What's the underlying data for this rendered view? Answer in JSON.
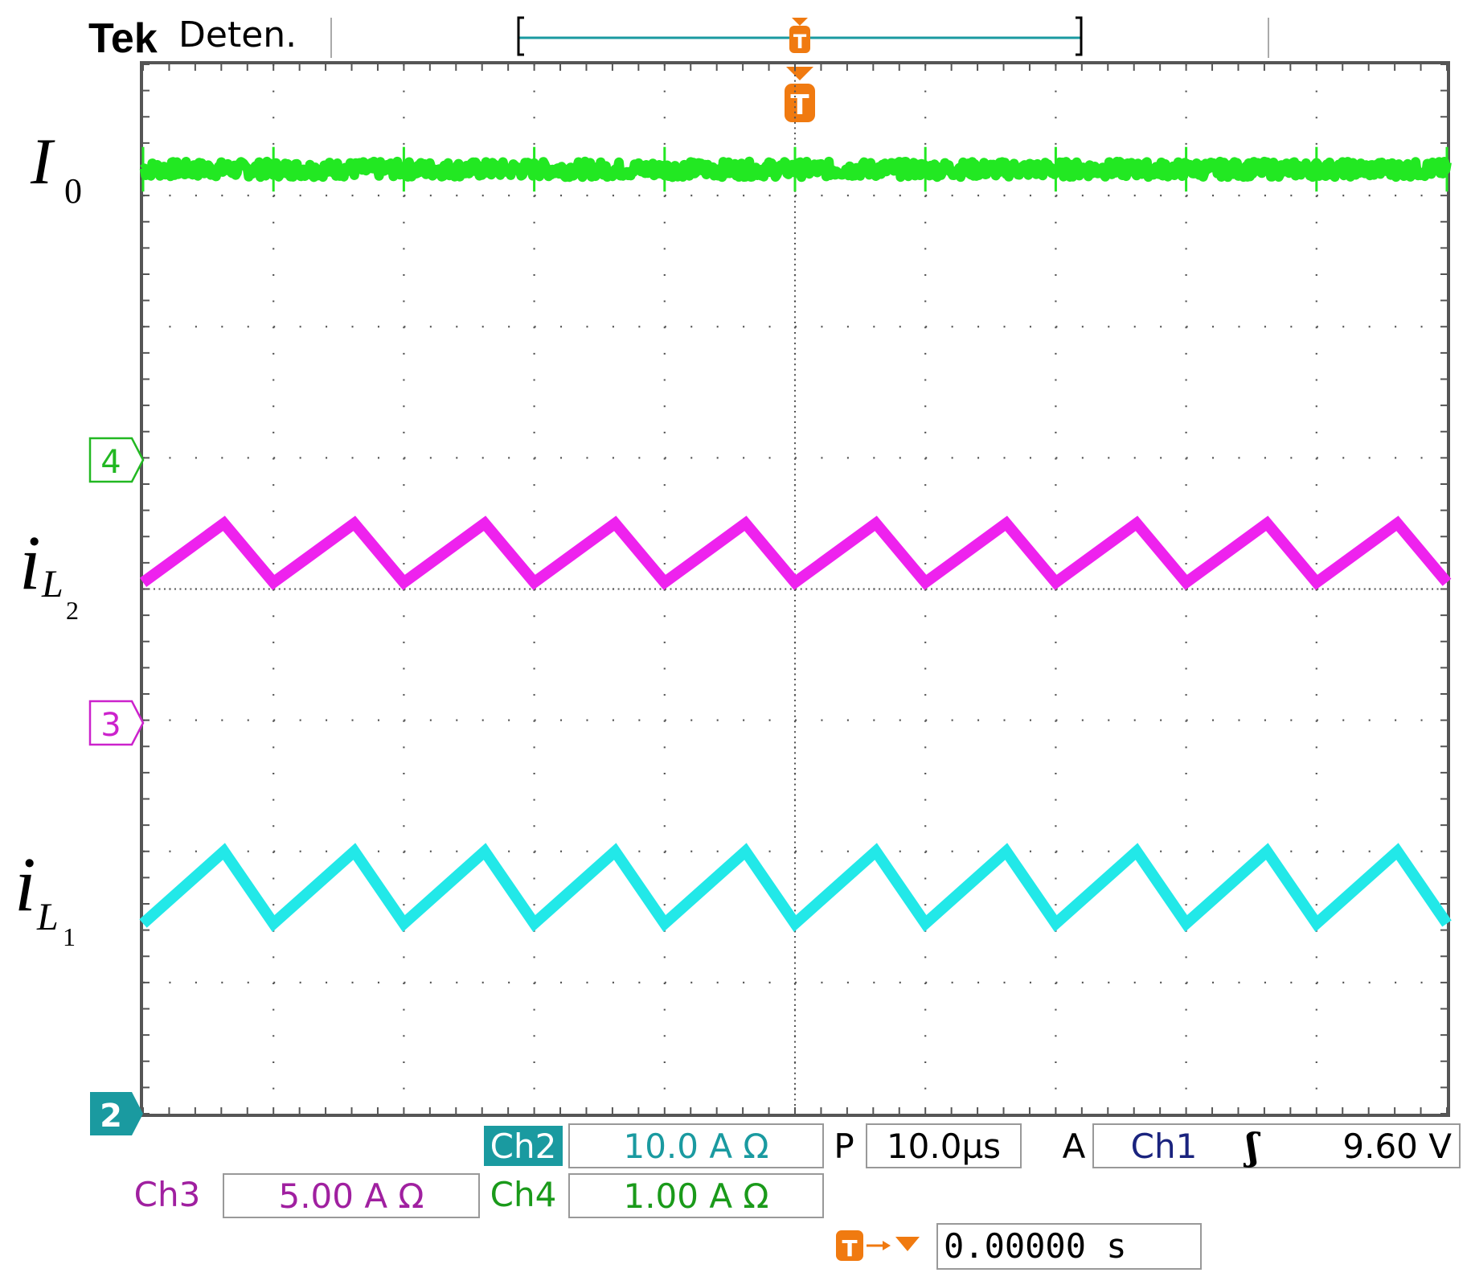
{
  "header": {
    "brand": "Tek",
    "status": "Deten.",
    "trigger_marker": "T"
  },
  "trace_labels": {
    "io_main": "I",
    "io_sub": "0",
    "il2_main": "i",
    "il2_sub": "L",
    "il2_subsub": "2",
    "il1_main": "i",
    "il1_sub": "L",
    "il1_subsub": "1"
  },
  "channel_markers": {
    "ch4": "4",
    "ch3": "3",
    "ch2": "2"
  },
  "readouts": {
    "ch2_name": "Ch2",
    "ch2_scale": "10.0 A Ω",
    "ch3_name": "Ch3",
    "ch3_scale": "5.00 A Ω",
    "ch4_name": "Ch4",
    "ch4_scale": "1.00 A Ω",
    "p_label": "P",
    "timebase": "10.0µs",
    "a_label": "A",
    "trigger_source": "Ch1",
    "trigger_slope": "ʃ",
    "trigger_level": "9.60 V",
    "trigger_pos_label": "T",
    "trigger_offset": "0.00000 s"
  },
  "colors": {
    "ch4": "#22e822",
    "ch3": "#ee22ee",
    "ch2": "#22e8e8",
    "ch2_tag": "#1a9aa0",
    "ch1": "#1a237e",
    "trigger": "#f07a10",
    "grid": "#555555"
  },
  "chart_data": {
    "type": "line",
    "grid": true,
    "x_divisions": 10,
    "y_divisions": 8,
    "series": [
      {
        "channel": "Ch4",
        "shape": "flat",
        "level_div": 7.2,
        "noise_div": 0.06,
        "color": "#22e822"
      },
      {
        "channel": "Ch3",
        "shape": "triangle",
        "peak_div": 4.5,
        "valley_div": 4.05,
        "period_div": 1.0,
        "peak_phase_div": 0.62,
        "color": "#ee22ee"
      },
      {
        "channel": "Ch2",
        "shape": "triangle",
        "peak_div": 2.0,
        "valley_div": 1.45,
        "period_div": 1.0,
        "peak_phase_div": 0.62,
        "color": "#22e8e8"
      }
    ]
  }
}
